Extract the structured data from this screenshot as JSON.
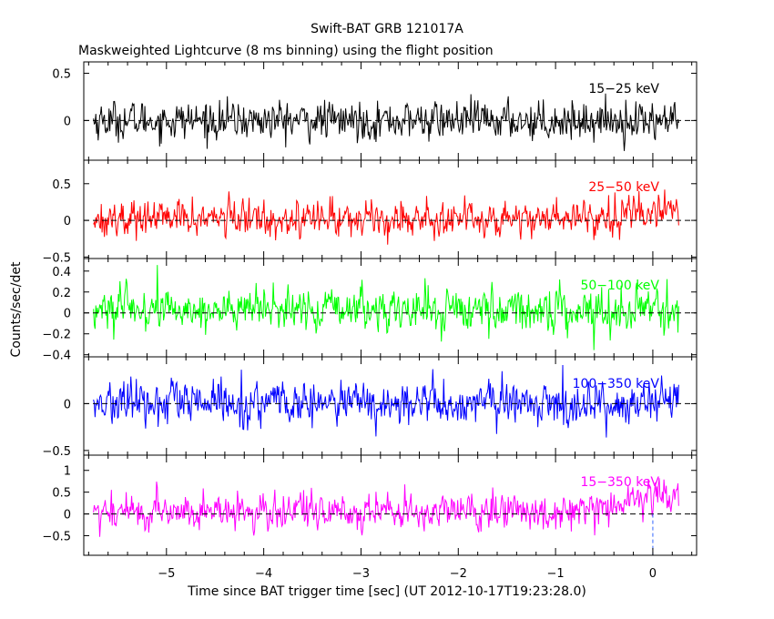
{
  "chart_data": {
    "type": "line",
    "title": "Swift-BAT GRB 121017A",
    "subtitle": "Maskweighted Lightcurve (8 ms binning) using the flight position",
    "xlabel": "Time since BAT trigger time [sec] (UT 2012-10-17T19:23:28.0)",
    "ylabel": "Counts/sec/det",
    "xlim": [
      -5.85,
      0.45
    ],
    "x_ticks": [
      -5,
      -4,
      -3,
      -2,
      -1,
      0
    ],
    "x_tick_labels": [
      "−5",
      "−4",
      "−3",
      "−2",
      "−1",
      "0"
    ],
    "data_range": [
      -5.75,
      0.27
    ],
    "bin_width": 0.008,
    "trigger_marker_x": 0,
    "panels": [
      {
        "name": "15−25 keV",
        "color": "#000000",
        "ylim": [
          -0.42,
          0.62
        ],
        "yticks": [
          0,
          0.5
        ],
        "ytick_labels": [
          "0",
          "0.5"
        ],
        "mean": 0.0,
        "noise": 0.13
      },
      {
        "name": "25−50 keV",
        "color": "#ff0000",
        "ylim": [
          -0.52,
          0.82
        ],
        "yticks": [
          -0.5,
          0,
          0.5
        ],
        "ytick_labels": [
          "−0.5",
          "0",
          "0.5"
        ],
        "mean": 0.03,
        "noise": 0.16,
        "rise_start": -1.0,
        "rise_amount": 0.12
      },
      {
        "name": "50−100 keV",
        "color": "#00ff00",
        "ylim": [
          -0.42,
          0.52
        ],
        "yticks": [
          -0.4,
          -0.2,
          0,
          0.2,
          0.4
        ],
        "ytick_labels": [
          "−0.4",
          "−0.2",
          "0",
          "0.2",
          "0.4"
        ],
        "mean": 0.03,
        "noise": 0.13
      },
      {
        "name": "100−350 keV",
        "color": "#0000ff",
        "ylim": [
          -0.55,
          0.5
        ],
        "yticks": [
          -0.5,
          0
        ],
        "ytick_labels": [
          "−0.5",
          "0"
        ],
        "mean": 0.0,
        "noise": 0.15
      },
      {
        "name": "15−350 keV",
        "color": "#ff00ff",
        "ylim": [
          -0.95,
          1.35
        ],
        "yticks": [
          -0.5,
          0,
          0.5,
          1
        ],
        "ytick_labels": [
          "−0.5",
          "0",
          "0.5",
          "1"
        ],
        "mean": 0.05,
        "noise": 0.27,
        "rise_start": -1.0,
        "rise_amount": 0.45
      }
    ]
  }
}
